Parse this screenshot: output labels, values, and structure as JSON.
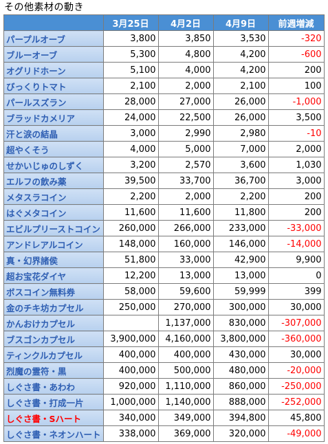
{
  "title": "その他素材の動き",
  "headers": [
    "",
    "3月25日",
    "4月2日",
    "4月9日",
    "前週増減"
  ],
  "rows": [
    {
      "name": "パープルオーブ",
      "v1": "3,800",
      "v2": "3,850",
      "v3": "3,530",
      "diff": "-320"
    },
    {
      "name": "ブルーオーブ",
      "v1": "5,300",
      "v2": "4,800",
      "v3": "4,200",
      "diff": "-600"
    },
    {
      "name": "オグリドホーン",
      "v1": "5,100",
      "v2": "4,000",
      "v3": "4,200",
      "diff": "200"
    },
    {
      "name": "びっくりトマト",
      "v1": "2,100",
      "v2": "2,000",
      "v3": "2,100",
      "diff": "100"
    },
    {
      "name": "パールスズラン",
      "v1": "28,000",
      "v2": "27,000",
      "v3": "26,000",
      "diff": "-1,000"
    },
    {
      "name": "ブラッドカメリア",
      "v1": "24,000",
      "v2": "22,500",
      "v3": "26,000",
      "diff": "3,500"
    },
    {
      "name": "汗と涙の結晶",
      "v1": "3,000",
      "v2": "2,990",
      "v3": "2,980",
      "diff": "-10"
    },
    {
      "name": "超やくそう",
      "v1": "4,000",
      "v2": "5,000",
      "v3": "7,000",
      "diff": "2,000"
    },
    {
      "name": "せかいじゅのしずく",
      "v1": "3,200",
      "v2": "2,570",
      "v3": "3,600",
      "diff": "1,030"
    },
    {
      "name": "エルフの飲み薬",
      "v1": "39,500",
      "v2": "33,700",
      "v3": "36,700",
      "diff": "3,000"
    },
    {
      "name": "メタスラコイン",
      "v1": "2,200",
      "v2": "2,000",
      "v3": "2,200",
      "diff": "200"
    },
    {
      "name": "はぐメタコイン",
      "v1": "11,600",
      "v2": "11,600",
      "v3": "11,800",
      "diff": "200"
    },
    {
      "name": "エビルプリーストコイン",
      "v1": "260,000",
      "v2": "266,000",
      "v3": "233,000",
      "diff": "-33,000"
    },
    {
      "name": "アンドレアルコイン",
      "v1": "148,000",
      "v2": "160,000",
      "v3": "146,000",
      "diff": "-14,000"
    },
    {
      "name": "真・幻界諸侯",
      "v1": "51,800",
      "v2": "33,000",
      "v3": "42,900",
      "diff": "9,900"
    },
    {
      "name": "超お宝花ダイヤ",
      "v1": "12,200",
      "v2": "13,000",
      "v3": "13,000",
      "diff": "0"
    },
    {
      "name": "ボスコイン無料券",
      "v1": "58,000",
      "v2": "59,600",
      "v3": "59,999",
      "diff": "399"
    },
    {
      "name": "金のチキ坊カプセル",
      "v1": "250,000",
      "v2": "270,000",
      "v3": "300,000",
      "diff": "30,000"
    },
    {
      "name": "かんおけカプセル",
      "v1": "",
      "v2": "1,137,000",
      "v3": "830,000",
      "diff": "-307,000"
    },
    {
      "name": "ブスゴンカプセル",
      "v1": "3,900,000",
      "v2": "4,160,000",
      "v3": "3,800,000",
      "diff": "-360,000"
    },
    {
      "name": "ティンクルカプセル",
      "v1": "400,000",
      "v2": "400,000",
      "v3": "430,000",
      "diff": "30,000"
    },
    {
      "name": "烈魔の霊符・黒",
      "v1": "400,000",
      "v2": "500,000",
      "v3": "480,000",
      "diff": "-20,000"
    },
    {
      "name": "しぐさ書・あわわ",
      "v1": "920,000",
      "v2": "1,110,000",
      "v3": "860,000",
      "diff": "-250,000"
    },
    {
      "name": "しぐさ書・打成一片",
      "v1": "1,000,000",
      "v2": "1,140,000",
      "v3": "888,000",
      "diff": "-252,000"
    },
    {
      "name": "しぐさ書・Sハート",
      "v1": "340,000",
      "v2": "349,000",
      "v3": "394,800",
      "diff": "45,800",
      "highlight": "#ff0000"
    },
    {
      "name": "しぐさ書・ネオンハート",
      "v1": "338,000",
      "v2": "369,000",
      "v3": "320,000",
      "diff": "-49,000"
    }
  ],
  "colors": {
    "header_bg": "#4a8fd4",
    "name_text": "#2f5fb3",
    "negative": "#ff0000",
    "name_bg": "#c4d8f1"
  }
}
